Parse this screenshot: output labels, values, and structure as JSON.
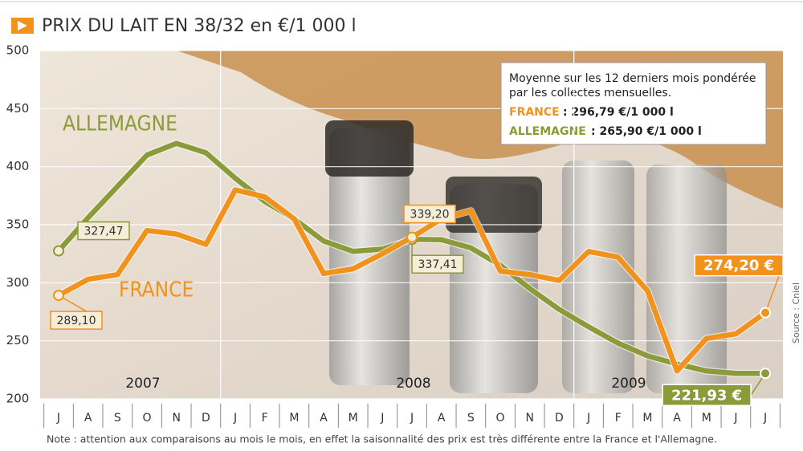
{
  "chart_data": {
    "type": "line",
    "title": "PRIX DU LAIT EN 38/32 en €/1 000 l",
    "categories": [
      "J",
      "A",
      "S",
      "O",
      "N",
      "D",
      "J",
      "F",
      "M",
      "A",
      "M",
      "J",
      "J",
      "A",
      "S",
      "O",
      "N",
      "D",
      "J",
      "F",
      "M",
      "A",
      "M",
      "J",
      "J"
    ],
    "year_labels": [
      "2007",
      "2008",
      "2009"
    ],
    "series": [
      {
        "name": "ALLEMAGNE",
        "color": "#8c9b3a",
        "values": [
          327.47,
          356,
          383,
          410,
          420,
          412,
          390,
          370,
          355,
          336,
          327,
          329,
          337.41,
          337,
          330,
          315,
          295,
          277,
          262,
          248,
          237,
          230,
          224,
          222,
          221.93
        ],
        "value_labels": [
          "327,47",
          null,
          null,
          null,
          null,
          null,
          null,
          null,
          null,
          null,
          null,
          null,
          "337,41",
          null,
          null,
          null,
          null,
          null,
          null,
          null,
          null,
          null,
          null,
          null,
          "221,93 €"
        ]
      },
      {
        "name": "FRANCE",
        "color": "#f0921c",
        "values": [
          289.1,
          303,
          307,
          345,
          342,
          333,
          380,
          374,
          355,
          308,
          312,
          325,
          339.2,
          355,
          362,
          310,
          307,
          302,
          327,
          322,
          293,
          224,
          252,
          256,
          274.2
        ],
        "value_labels": [
          "289,10",
          null,
          null,
          null,
          null,
          null,
          null,
          null,
          null,
          null,
          null,
          null,
          "339,20",
          null,
          null,
          null,
          null,
          null,
          null,
          null,
          null,
          null,
          null,
          null,
          "274,20 €"
        ]
      }
    ],
    "ylim": [
      200,
      500
    ],
    "yticks": [
      200,
      250,
      300,
      350,
      400,
      450,
      500
    ],
    "grid": true,
    "summary": {
      "text": [
        "Moyenne sur les 12 derniers mois pondérée",
        "par les collectes mensuelles."
      ],
      "items": [
        {
          "name": "FRANCE",
          "value": ": 296,79 €/1 000 l"
        },
        {
          "name": "ALLEMAGNE",
          "value": ": 265,90 €/1 000 l"
        }
      ]
    },
    "note": "Note : attention aux comparaisons au mois le mois, en effet la saisonnalité des prix est très différente entre la France et l'Allemagne.",
    "source": "Source : Cniel"
  }
}
